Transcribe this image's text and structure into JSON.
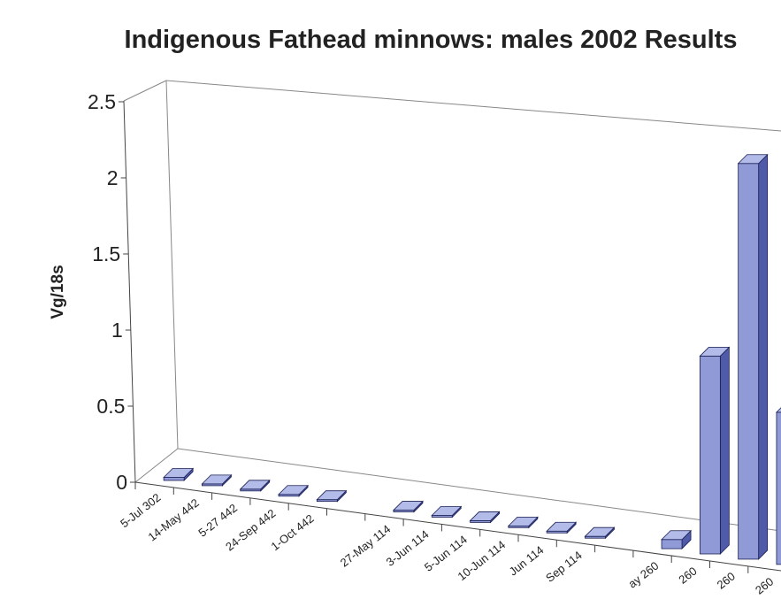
{
  "chart_data": {
    "type": "bar",
    "title": "Indigenous Fathead minnows: males 2002 Results",
    "ylabel": "Vg/18s",
    "xlabel": "",
    "ylim": [
      0,
      2.5
    ],
    "yticks": [
      "0",
      "0.5",
      "1",
      "1.5",
      "2",
      "2.5"
    ],
    "grid": false,
    "legend": "none",
    "style": "3d-column",
    "bar_color": "#8f9ad6",
    "categories": [
      "5-Jul 302",
      "14-May 442",
      "5-27 442",
      "24-Sep 442",
      "1-Oct 442",
      "",
      "27-May 114",
      "3-Jun 114",
      "5-Jun 114",
      "10-Jun 114",
      "Jun 114",
      "Sep 114",
      "",
      "ay 260",
      "260",
      "260",
      "260"
    ],
    "values": [
      0.02,
      0.01,
      0.01,
      0.01,
      0.01,
      null,
      0.01,
      0.01,
      0.01,
      0.01,
      0.01,
      0.01,
      null,
      0.06,
      1.3,
      2.6,
      1.0
    ]
  }
}
